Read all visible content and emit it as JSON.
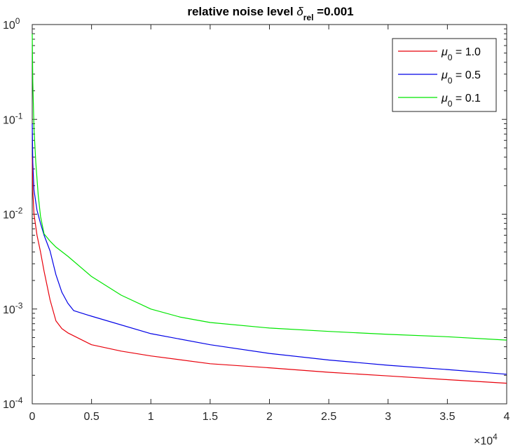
{
  "chart_data": {
    "type": "line",
    "title": {
      "prefix": "relative noise level ",
      "symbol": "δ",
      "subscript": "rel",
      "suffix": " =0.001"
    },
    "xlabel": "",
    "ylabel": "",
    "xlim": [
      0,
      40000
    ],
    "ylim": [
      0.0001,
      1
    ],
    "yscale": "log",
    "grid": false,
    "legend_position": "top-right",
    "x_exponent_label": {
      "base": "×10",
      "exp": "4"
    },
    "x_ticks": [
      0,
      5000,
      10000,
      15000,
      20000,
      25000,
      30000,
      35000,
      40000
    ],
    "x_tick_labels": [
      "0",
      "0.5",
      "1",
      "1.5",
      "2",
      "2.5",
      "3",
      "3.5",
      "4"
    ],
    "y_ticks": [
      {
        "value": 1,
        "base": "10",
        "exp": "0"
      },
      {
        "value": 0.1,
        "base": "10",
        "exp": "-1"
      },
      {
        "value": 0.01,
        "base": "10",
        "exp": "-2"
      },
      {
        "value": 0.001,
        "base": "10",
        "exp": "-3"
      },
      {
        "value": 0.0001,
        "base": "10",
        "exp": "-4"
      }
    ],
    "series": [
      {
        "name": {
          "symbol": "μ",
          "sub": "0",
          "rest": " = 1.0"
        },
        "color": "#e8000b",
        "points": [
          [
            0,
            0.04
          ],
          [
            50,
            0.018
          ],
          [
            150,
            0.01
          ],
          [
            400,
            0.006
          ],
          [
            700,
            0.004
          ],
          [
            1000,
            0.0025
          ],
          [
            1500,
            0.00125
          ],
          [
            2000,
            0.00075
          ],
          [
            2500,
            0.00062
          ],
          [
            3000,
            0.00056
          ],
          [
            5000,
            0.00042
          ],
          [
            7500,
            0.00036
          ],
          [
            10000,
            0.00032
          ],
          [
            15000,
            0.000265
          ],
          [
            20000,
            0.00024
          ],
          [
            25000,
            0.000215
          ],
          [
            30000,
            0.000197
          ],
          [
            35000,
            0.00018
          ],
          [
            40000,
            0.000165
          ]
        ]
      },
      {
        "name": {
          "symbol": "μ",
          "sub": "0",
          "rest": " = 0.5"
        },
        "color": "#0000e6",
        "points": [
          [
            0,
            0.09
          ],
          [
            50,
            0.035
          ],
          [
            150,
            0.018
          ],
          [
            400,
            0.011
          ],
          [
            700,
            0.008
          ],
          [
            1000,
            0.006
          ],
          [
            1500,
            0.0041
          ],
          [
            2000,
            0.0023
          ],
          [
            2500,
            0.0015
          ],
          [
            3000,
            0.00115
          ],
          [
            3500,
            0.00096
          ],
          [
            5000,
            0.00084
          ],
          [
            10000,
            0.00055
          ],
          [
            15000,
            0.00042
          ],
          [
            20000,
            0.00034
          ],
          [
            25000,
            0.00029
          ],
          [
            30000,
            0.000255
          ],
          [
            35000,
            0.00023
          ],
          [
            40000,
            0.000205
          ]
        ]
      },
      {
        "name": {
          "symbol": "μ",
          "sub": "0",
          "rest": " = 0.1"
        },
        "color": "#00e600",
        "points": [
          [
            0,
            0.8
          ],
          [
            50,
            0.25
          ],
          [
            150,
            0.08
          ],
          [
            300,
            0.035
          ],
          [
            500,
            0.016
          ],
          [
            700,
            0.0095
          ],
          [
            1000,
            0.0062
          ],
          [
            1500,
            0.0052
          ],
          [
            2000,
            0.0045
          ],
          [
            3000,
            0.0036
          ],
          [
            5000,
            0.0022
          ],
          [
            7500,
            0.0014
          ],
          [
            10000,
            0.001
          ],
          [
            12500,
            0.00082
          ],
          [
            15000,
            0.00072
          ],
          [
            20000,
            0.00063
          ],
          [
            25000,
            0.00058
          ],
          [
            30000,
            0.00054
          ],
          [
            35000,
            0.00051
          ],
          [
            40000,
            0.00047
          ]
        ]
      }
    ]
  }
}
